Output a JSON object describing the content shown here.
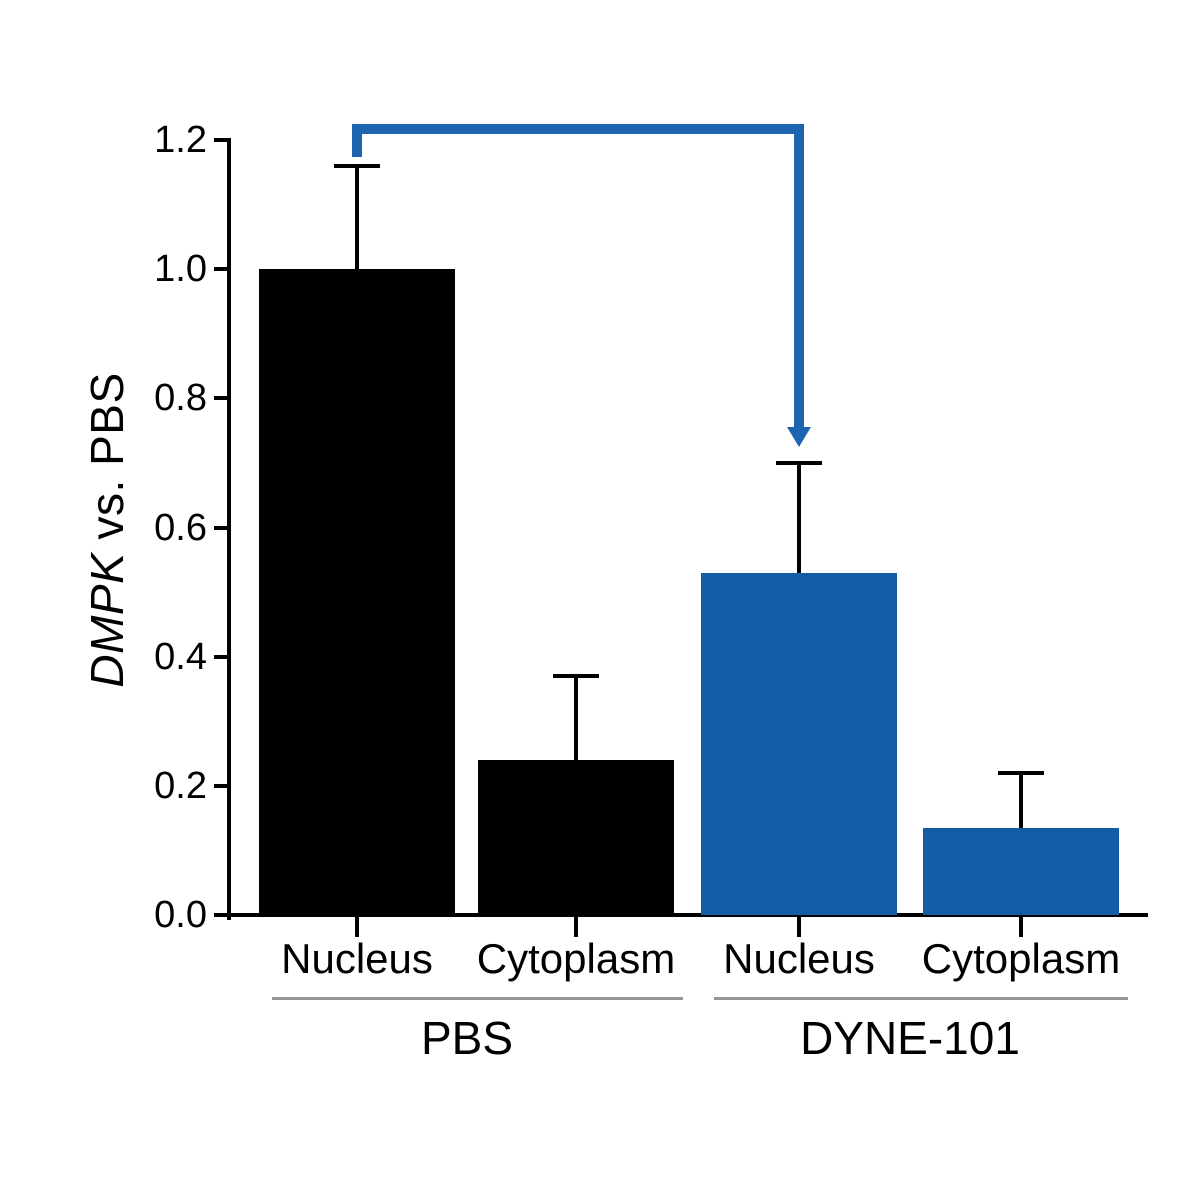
{
  "figure": {
    "background": "#FFFFFF"
  },
  "chart_data": {
    "type": "bar",
    "title": "",
    "ylabel": "DMPK vs. PBS",
    "ylabel_parts": {
      "italic": "DMPK",
      "regular": " vs. PBS"
    },
    "ylim": [
      0,
      1.2
    ],
    "ytick_values": [
      0,
      0.2,
      0.4,
      0.6,
      0.8,
      1.0,
      1.2
    ],
    "ytick_labels": [
      "0.0",
      "0.2",
      "0.4",
      "0.6",
      "0.8",
      "1.0",
      "1.2"
    ],
    "categories": [
      "Nucleus",
      "Cytoplasm",
      "Nucleus",
      "Cytoplasm"
    ],
    "values": [
      1.0,
      0.24,
      0.53,
      0.135
    ],
    "errors_up": [
      0.16,
      0.13,
      0.17,
      0.085
    ],
    "bar_colors": [
      "#000000",
      "#000000",
      "#155CA7",
      "#155CA7"
    ],
    "groups": [
      {
        "label": "PBS",
        "bar_indexes": [
          0,
          1
        ]
      },
      {
        "label": "DYNE-101",
        "bar_indexes": [
          2,
          3
        ]
      }
    ],
    "annotation_arrow": {
      "from_bar": 0,
      "to_bar": 2,
      "color": "#1D64B1"
    },
    "axis_color": "#000000",
    "error_bar_color": "#000000",
    "separator_color": "#969696",
    "grid": false,
    "legend": "none"
  }
}
